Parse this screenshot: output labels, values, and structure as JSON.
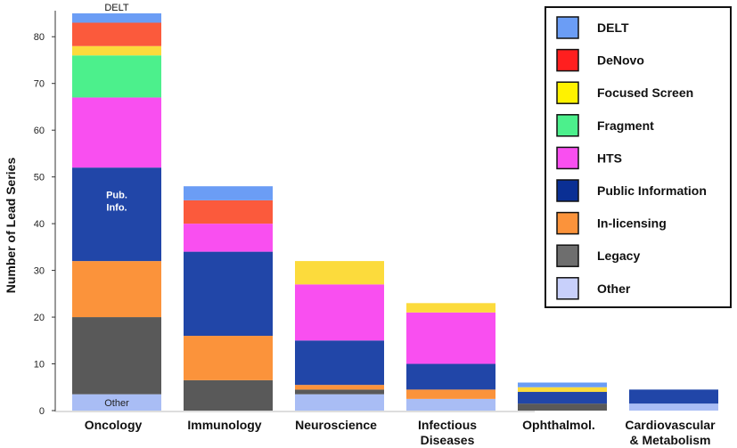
{
  "chart_data": {
    "type": "bar",
    "stacked": true,
    "ylabel": "Number of Lead Series",
    "ylim": [
      0,
      85
    ],
    "yticks": [
      0,
      10,
      20,
      30,
      40,
      50,
      60,
      70,
      80
    ],
    "grid": false,
    "legend_position": "top-right",
    "categories": [
      [
        "Oncology"
      ],
      [
        "Immunology"
      ],
      [
        "Neuroscience"
      ],
      [
        "Infectious",
        "Diseases"
      ],
      [
        "Ophthalmol."
      ],
      [
        "Cardiovascular",
        "& Metabolism"
      ]
    ],
    "series": [
      {
        "name": "Other",
        "color": "#a9bdf5",
        "values": [
          3.5,
          0,
          3.5,
          2.5,
          0,
          1.5
        ]
      },
      {
        "name": "Legacy",
        "color": "#595959",
        "values": [
          16.5,
          6.5,
          1,
          0,
          1.5,
          0
        ]
      },
      {
        "name": "In-licensing",
        "color": "#fb933b",
        "values": [
          12,
          9.5,
          1,
          2,
          0,
          0
        ]
      },
      {
        "name": "Public Information",
        "color": "#2146a8",
        "values": [
          20,
          18,
          9.5,
          5.5,
          2.5,
          3
        ]
      },
      {
        "name": "HTS",
        "color": "#f94ff0",
        "values": [
          15,
          6,
          12,
          11,
          0,
          0
        ]
      },
      {
        "name": "Fragment",
        "color": "#4cf08c",
        "values": [
          9,
          0,
          0,
          0,
          0,
          0
        ]
      },
      {
        "name": "Focused Screen",
        "color": "#fcdb3c",
        "values": [
          2,
          0,
          5,
          2,
          1,
          0
        ]
      },
      {
        "name": "DeNovo",
        "color": "#fb5a3c",
        "values": [
          5,
          5,
          0,
          0,
          0,
          0
        ]
      },
      {
        "name": "DELT",
        "color": "#6b9df5",
        "values": [
          2,
          3,
          0,
          0,
          1,
          0
        ]
      }
    ],
    "legend": [
      {
        "name": "DELT",
        "color": "#6b9df5"
      },
      {
        "name": "DeNovo",
        "color": "#ff1f1f"
      },
      {
        "name": "Focused Screen",
        "color": "#fff200"
      },
      {
        "name": "Fragment",
        "color": "#4cf08c"
      },
      {
        "name": "HTS",
        "color": "#f94ff0"
      },
      {
        "name": "Public Information",
        "color": "#0a2f94"
      },
      {
        "name": "In-licensing",
        "color": "#fb933b"
      },
      {
        "name": "Legacy",
        "color": "#6e6e6e"
      },
      {
        "name": "Other",
        "color": "#c8d0fb"
      }
    ],
    "annotations": [
      {
        "text": "DELT",
        "category": 0,
        "series": "DELT",
        "placement": "above",
        "color": "#111111"
      },
      {
        "text": "Pub.",
        "category": 0,
        "series": "Public Information",
        "placement": "inside-upper",
        "color": "#ffffff"
      },
      {
        "text": "Info.",
        "category": 0,
        "series": "Public Information",
        "placement": "inside-lower",
        "color": "#ffffff"
      },
      {
        "text": "Other",
        "category": 0,
        "series": "Other",
        "placement": "inside",
        "color": "#222222"
      }
    ]
  }
}
